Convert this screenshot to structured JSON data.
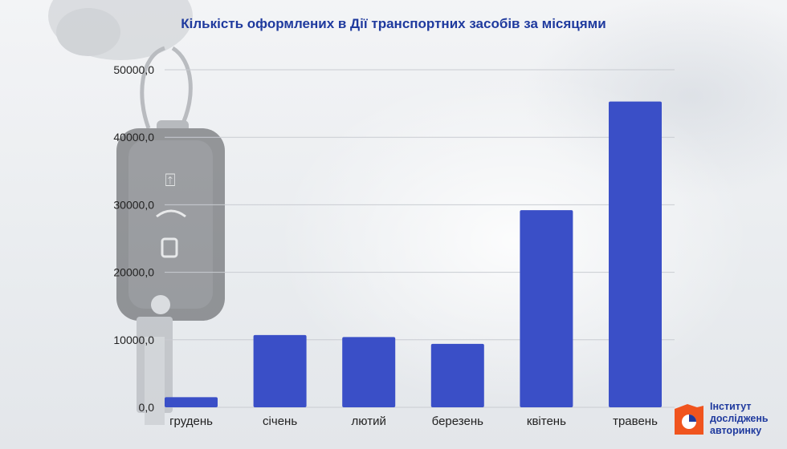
{
  "chart_data": {
    "type": "bar",
    "title": "Кількість оформлених в Дії транспортних засобів за місяцями",
    "categories": [
      "грудень",
      "січень",
      "лютий",
      "березень",
      "квітень",
      "травень"
    ],
    "values": [
      1500,
      10700,
      10400,
      9400,
      29200,
      45300
    ],
    "ylim": [
      0,
      50000
    ],
    "yticks": [
      0,
      10000,
      20000,
      30000,
      40000,
      50000
    ],
    "ytick_labels": [
      "0,0",
      "10000,0",
      "20000,0",
      "30000,0",
      "40000,0",
      "50000,0"
    ],
    "grid": true,
    "bar_color": "#3a4fc7",
    "xlabel": "",
    "ylabel": ""
  },
  "brand": {
    "line1": "Інститут",
    "line2": "досліджень",
    "line3": "авторинку",
    "icon": "institute-logo-icon",
    "accent_color": "#f0541e",
    "text_color": "#1f3a9e"
  }
}
